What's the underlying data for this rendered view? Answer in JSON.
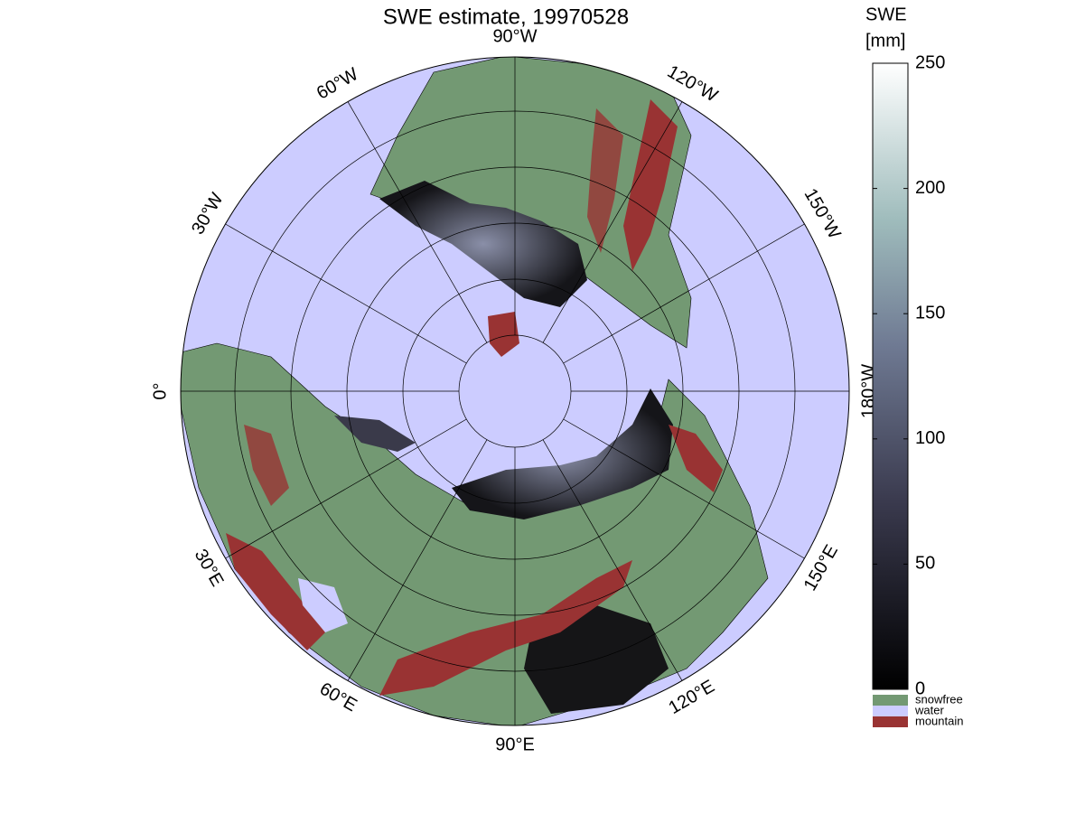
{
  "title": "SWE estimate, 19970528",
  "map": {
    "longitude_labels": [
      "0°",
      "30°W",
      "60°W",
      "90°W",
      "120°W",
      "150°W",
      "180°W",
      "150°E",
      "120°E",
      "90°E",
      "60°E",
      "30°E"
    ]
  },
  "colorbar": {
    "title": [
      "SWE",
      "[mm]"
    ],
    "lim": [
      0,
      250
    ],
    "ticks": [
      0,
      50,
      100,
      150,
      200,
      250
    ],
    "legend": [
      {
        "label": "snowfree",
        "color": "#739973"
      },
      {
        "label": "water",
        "color": "#ccccff"
      },
      {
        "label": "mountain",
        "color": "#993333"
      }
    ]
  }
}
